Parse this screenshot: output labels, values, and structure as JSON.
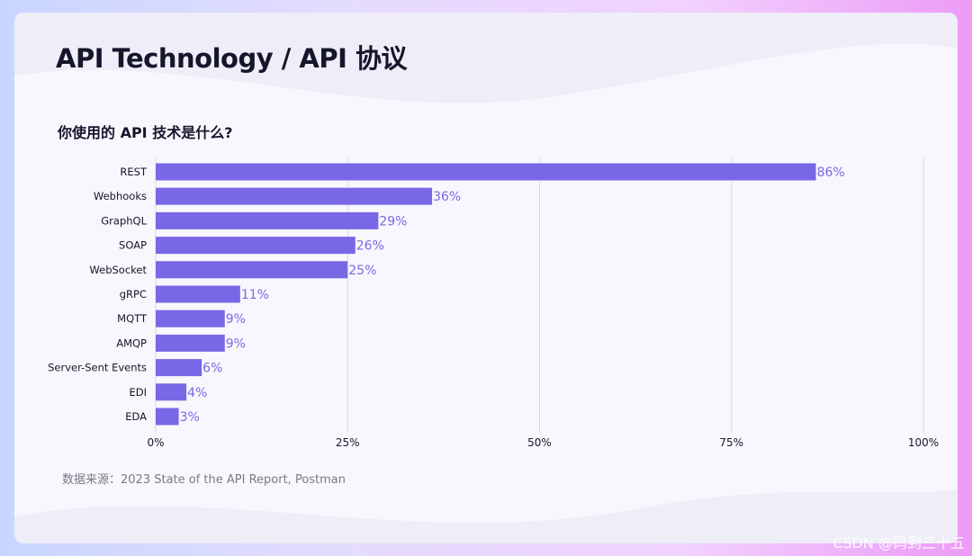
{
  "slide": {
    "title": "API Technology / API 协议",
    "question": "你使用的 API 技术是什么?",
    "source": "数据来源：2023 State of the API Report, Postman"
  },
  "watermark": "CSDN @码到三十五",
  "colors": {
    "bar": "#7868e6",
    "value_label": "#7868e6",
    "grid": "#d9d9e0",
    "text": "#15162b"
  },
  "chart_data": {
    "type": "bar",
    "orientation": "horizontal",
    "title": "你使用的 API 技术是什么?",
    "xlabel": "",
    "ylabel": "",
    "categories": [
      "REST",
      "Webhooks",
      "GraphQL",
      "SOAP",
      "WebSocket",
      "gRPC",
      "MQTT",
      "AMQP",
      "Server-Sent Events",
      "EDI",
      "EDA"
    ],
    "values": [
      86,
      36,
      29,
      26,
      25,
      11,
      9,
      9,
      6,
      4,
      3
    ],
    "value_labels": [
      "86%",
      "36%",
      "29%",
      "26%",
      "25%",
      "11%",
      "9%",
      "9%",
      "6%",
      "4%",
      "3%"
    ],
    "xlim": [
      0,
      100
    ],
    "xticks": [
      0,
      25,
      50,
      75,
      100
    ],
    "xtick_labels": [
      "0%",
      "25%",
      "50%",
      "75%",
      "100%"
    ],
    "grid": true,
    "legend": "none"
  }
}
